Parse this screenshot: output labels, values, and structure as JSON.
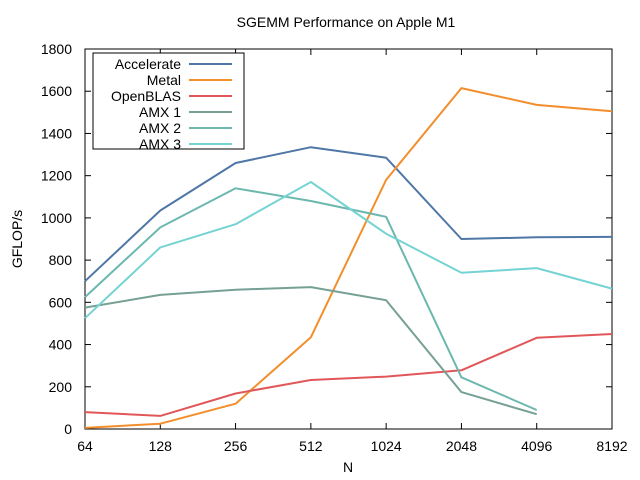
{
  "chart_data": {
    "type": "line",
    "title": "SGEMM Performance on Apple M1",
    "xlabel": "N",
    "ylabel": "GFLOP/s",
    "x_scale": "log2",
    "x_ticks": [
      "64",
      "128",
      "256",
      "512",
      "1024",
      "2048",
      "4096",
      "8192"
    ],
    "ylim": [
      0,
      1800
    ],
    "y_ticks": [
      "0",
      "200",
      "400",
      "600",
      "800",
      "1000",
      "1200",
      "1400",
      "1600",
      "1800"
    ],
    "grid": false,
    "legend_position": "top-left",
    "series": [
      {
        "name": "Accelerate",
        "color": "#4f77a6",
        "x": [
          64,
          128,
          256,
          512,
          1024,
          2048,
          4096,
          8192
        ],
        "y": [
          700,
          1035,
          1260,
          1335,
          1285,
          900,
          908,
          910
        ]
      },
      {
        "name": "Metal",
        "color": "#f28e2b",
        "x": [
          64,
          128,
          256,
          512,
          1024,
          2048,
          4096,
          8192
        ],
        "y": [
          5,
          25,
          120,
          435,
          1180,
          1615,
          1535,
          1505
        ]
      },
      {
        "name": "OpenBLAS",
        "color": "#e15759",
        "x": [
          64,
          128,
          256,
          512,
          1024,
          2048,
          4096,
          8192
        ],
        "y": [
          80,
          62,
          168,
          232,
          248,
          278,
          432,
          450
        ]
      },
      {
        "name": "AMX 1",
        "color": "#76a095",
        "x": [
          64,
          128,
          256,
          512,
          1024,
          2048,
          4096
        ],
        "y": [
          575,
          635,
          660,
          672,
          610,
          175,
          70
        ]
      },
      {
        "name": "AMX 2",
        "color": "#6cb8ae",
        "x": [
          64,
          128,
          256,
          512,
          1024,
          2048,
          4096
        ],
        "y": [
          625,
          955,
          1140,
          1080,
          1005,
          245,
          90
        ]
      },
      {
        "name": "AMX 3",
        "color": "#75d3d3",
        "x": [
          64,
          128,
          256,
          512,
          1024,
          2048,
          4096,
          8192
        ],
        "y": [
          525,
          860,
          970,
          1170,
          925,
          740,
          762,
          665
        ]
      }
    ]
  }
}
